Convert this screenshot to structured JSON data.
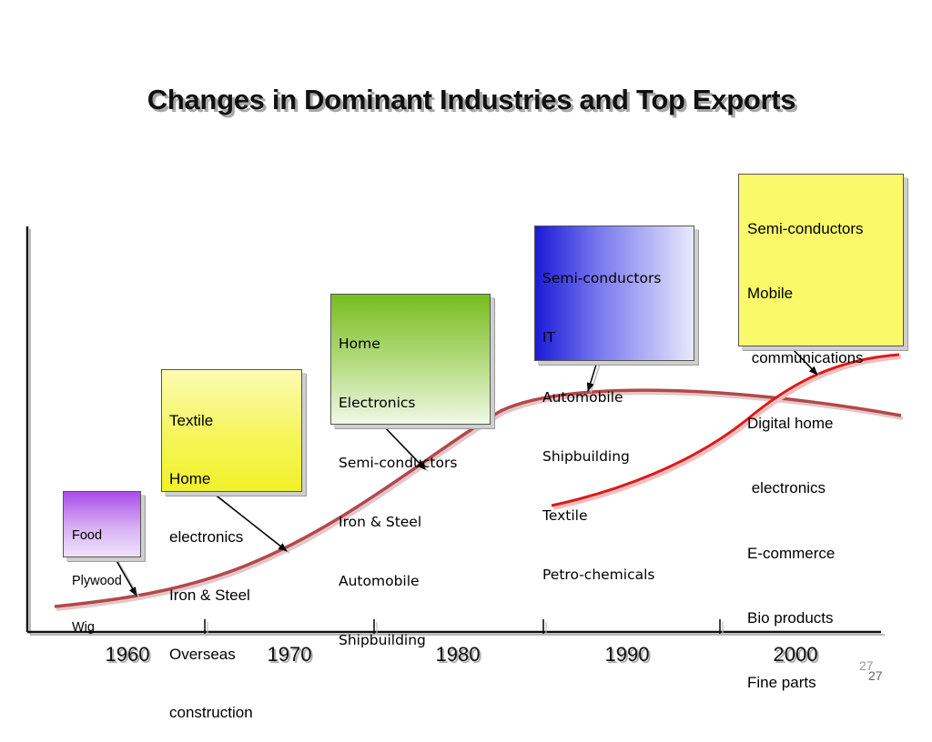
{
  "title": "Changes in Dominant Industries and Top Exports",
  "boxes": [
    {
      "id": "1960",
      "lines": [
        "Food",
        "Plywood",
        "Wig"
      ]
    },
    {
      "id": "1970",
      "lines": [
        "Textile",
        "Home",
        "electronics",
        "Iron & Steel",
        "Overseas",
        "construction"
      ]
    },
    {
      "id": "1980",
      "lines": [
        "Home",
        "Electronics",
        "Semi-conductors",
        "Iron & Steel",
        "Automobile",
        "Shipbuilding"
      ]
    },
    {
      "id": "1990",
      "lines": [
        "Semi-conductors",
        "IT",
        "Automobile",
        "Shipbuilding",
        "Textile",
        "Petro-chemicals"
      ]
    },
    {
      "id": "2000",
      "lines": [
        "Semi-conductors",
        "Mobile",
        " communications",
        "Digital home",
        " electronics",
        "E-commerce",
        "Bio products",
        "Fine parts"
      ]
    }
  ],
  "timeline": {
    "years": [
      "1960",
      "1970",
      "1980",
      "1990",
      "2000"
    ]
  },
  "colors": {
    "main_curve": "#b3484c",
    "new_curve": "#e01818",
    "axis": "#111111"
  },
  "page_number": "27"
}
